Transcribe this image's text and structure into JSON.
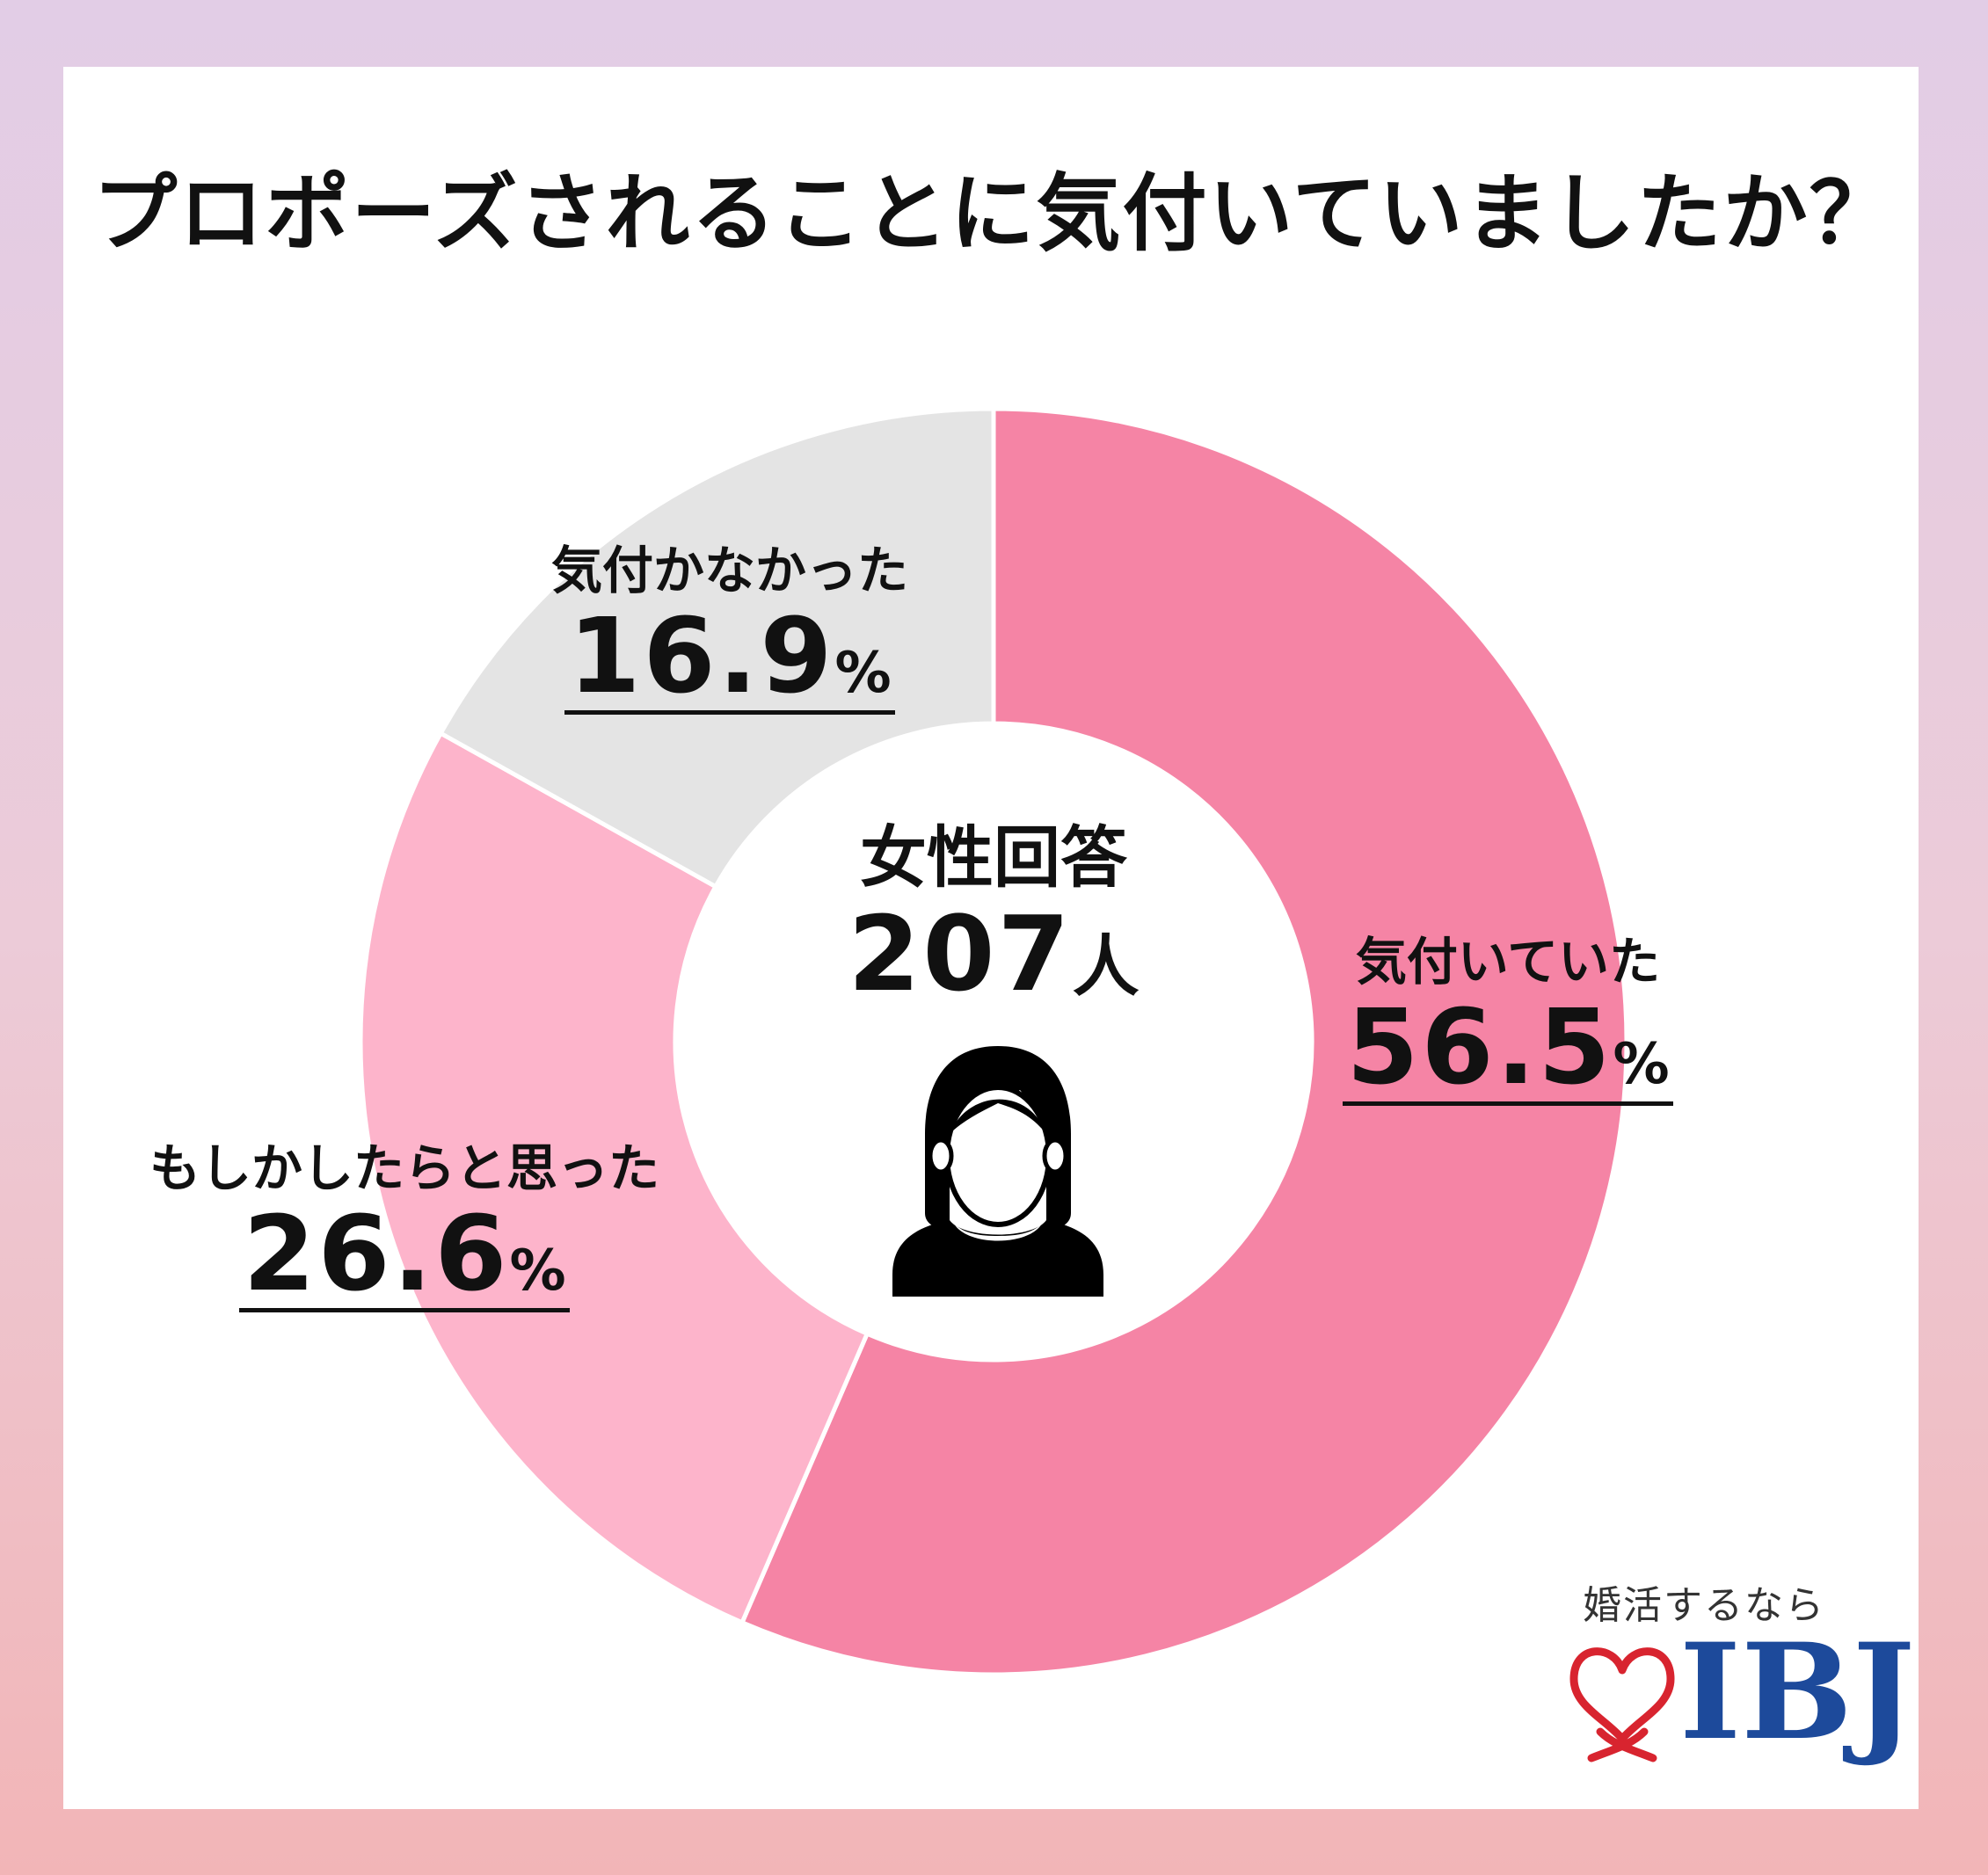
{
  "title": "プロポーズされることに気付いていましたか？",
  "center": {
    "label": "女性回答",
    "count": "207",
    "count_unit": "人",
    "icon": "woman-silhouette-icon"
  },
  "chart_data": {
    "type": "pie",
    "style": "donut",
    "title": "プロポーズされることに気付いていましたか？",
    "slices": [
      {
        "label": "気付いていた",
        "value": 56.5,
        "display": "56.5",
        "unit": "%",
        "color": "#f584a5"
      },
      {
        "label": "もしかしたらと思った",
        "value": 26.6,
        "display": "26.6",
        "unit": "%",
        "color": "#fdb4cb"
      },
      {
        "label": "気付かなかった",
        "value": 16.9,
        "display": "16.9",
        "unit": "%",
        "color": "#e4e4e4"
      }
    ]
  },
  "logo": {
    "tagline": "婚活するなら",
    "brand": "IBJ",
    "colors": {
      "brand": "#1d4a9b",
      "heart": "#d8242f"
    }
  }
}
